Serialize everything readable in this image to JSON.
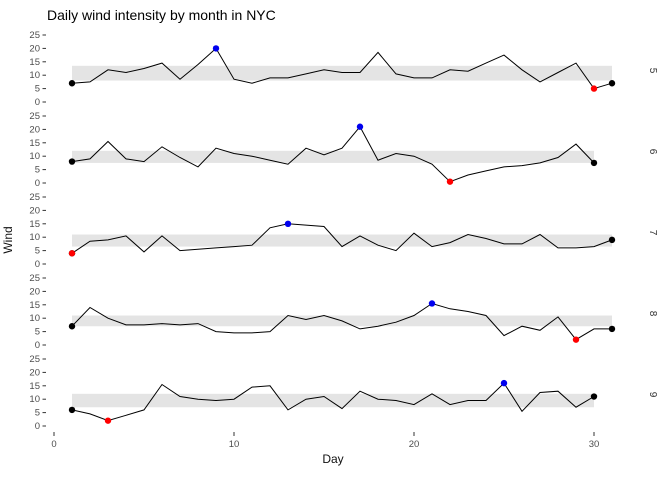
{
  "title": "Daily wind intensity by month in NYC",
  "chart_data": {
    "type": "line",
    "xlabel": "Day",
    "ylabel": "Wind",
    "x_ticks": [
      0,
      10,
      20,
      30
    ],
    "y_ticks": [
      0,
      5,
      10,
      15,
      20,
      25
    ],
    "ylim": [
      0,
      25
    ],
    "xlim": [
      0,
      31
    ],
    "grid": "off",
    "legend": "none",
    "facet_side": "right",
    "colors": {
      "line": "#000000",
      "endpoint_dot": "#000000",
      "max_dot": "#0000ee",
      "min_dot": "#ff0000",
      "band": "#e4e4e4",
      "tick_text": "#4d4d4d",
      "title_text": "#000000"
    },
    "facets": [
      {
        "month": "5",
        "n_days": 31,
        "values": [
          7,
          7.5,
          12,
          11,
          12.5,
          14.5,
          8.5,
          14,
          20,
          8.5,
          7,
          9,
          9,
          10.5,
          12,
          11,
          11,
          18.5,
          10.5,
          9,
          9,
          12,
          11.5,
          14.5,
          17.5,
          12,
          7.5,
          11,
          14.5,
          5,
          7
        ],
        "band": [
          8,
          13.5
        ],
        "start_point": {
          "day": 1,
          "value": 7
        },
        "end_point": {
          "day": 31,
          "value": 7
        },
        "max_point": {
          "day": 9,
          "value": 20
        },
        "min_point": {
          "day": 30,
          "value": 5
        }
      },
      {
        "month": "6",
        "n_days": 30,
        "values": [
          8,
          9,
          15.5,
          9,
          8,
          13.5,
          9.5,
          6,
          13,
          11,
          10,
          8.5,
          7,
          13,
          10.5,
          13,
          21,
          8.5,
          11,
          10,
          7,
          0.5,
          3,
          4.5,
          6,
          6.5,
          7.5,
          9.5,
          14.5,
          7.5
        ],
        "band": [
          7.5,
          12
        ],
        "start_point": {
          "day": 1,
          "value": 8
        },
        "end_point": {
          "day": 30,
          "value": 7.5
        },
        "max_point": {
          "day": 17,
          "value": 21
        },
        "min_point": {
          "day": 22,
          "value": 0.5
        }
      },
      {
        "month": "7",
        "n_days": 31,
        "values": [
          4,
          8.5,
          9,
          10.5,
          4.5,
          10.5,
          5,
          5.5,
          6,
          6.5,
          7,
          13.5,
          15,
          14.5,
          14,
          6.5,
          10.5,
          7,
          5,
          11.5,
          6.5,
          8,
          11,
          9.5,
          7.5,
          7.5,
          11,
          6,
          6,
          6.5,
          9
        ],
        "band": [
          6.5,
          11
        ],
        "start_point": {
          "day": 1,
          "value": 4
        },
        "end_point": {
          "day": 31,
          "value": 9
        },
        "max_point": {
          "day": 13,
          "value": 15
        },
        "min_point": {
          "day": 1,
          "value": 4
        }
      },
      {
        "month": "8",
        "n_days": 31,
        "values": [
          7,
          14,
          10,
          7.5,
          7.5,
          8,
          7.5,
          8,
          5,
          4.5,
          4.5,
          5,
          11,
          9.5,
          11,
          9,
          6,
          7,
          8.5,
          11,
          15.5,
          13.5,
          12.5,
          11,
          3.5,
          7,
          5.5,
          10.5,
          2,
          6,
          6
        ],
        "band": [
          7,
          11
        ],
        "start_point": {
          "day": 1,
          "value": 7
        },
        "end_point": {
          "day": 31,
          "value": 6
        },
        "max_point": {
          "day": 21,
          "value": 15.5
        },
        "min_point": {
          "day": 29,
          "value": 2
        }
      },
      {
        "month": "9",
        "n_days": 30,
        "values": [
          6,
          4.5,
          2,
          4,
          6,
          15.5,
          11,
          10,
          9.5,
          10,
          14.5,
          15,
          6,
          10,
          11,
          6.5,
          13,
          10,
          9.5,
          8,
          12,
          8,
          9.5,
          9.5,
          16,
          5.5,
          12.5,
          13,
          7,
          11
        ],
        "band": [
          7,
          12
        ],
        "start_point": {
          "day": 1,
          "value": 6
        },
        "end_point": {
          "day": 30,
          "value": 11
        },
        "max_point": {
          "day": 25,
          "value": 16
        },
        "min_point": {
          "day": 3,
          "value": 2
        }
      }
    ]
  }
}
